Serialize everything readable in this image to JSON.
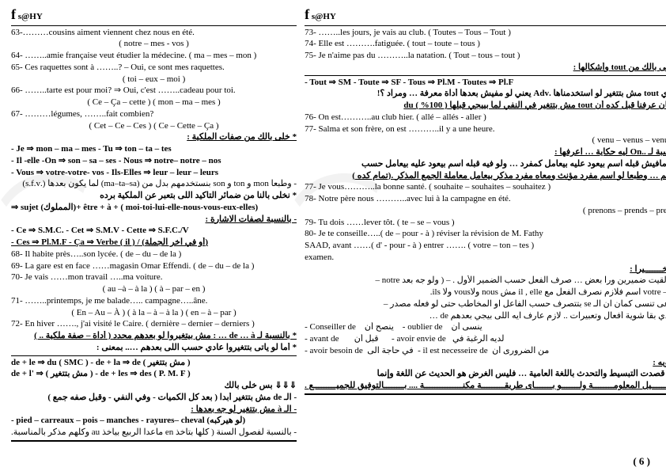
{
  "logo": {
    "fb": "f",
    "name": "s@HY"
  },
  "left": {
    "q63": "63-………cousins aiment viennent chez nous en été.",
    "q63o": "( notre – mes - vos )",
    "q64": "64- ……..amie française veut étudier la médecine. ( ma – mes – mon )",
    "q65": "65- Ces raquettes sont à ……..? – Oui, ce sont mes raquettes.",
    "q65o": "( toi – eux – moi )",
    "q66": "66- ……..tarte est pour moi? ⇒ Oui, c'est ……..cadeau pour toi.",
    "q66o": "( Ce – Ça – cette )            ( mon – ma – mes )",
    "q67": "67- ………légumes, ……..fait combien?",
    "q67o": "( Cet – Ce – Ces )             ( Ce – Cette – Ça )",
    "h1": "* خلى بالك من صفات الملكية :",
    "r1": "- Je          ⇒ mon – ma – mes - Tu       ⇒ ton – ta – tes",
    "r2": "- Il -elle -On ⇒ son – sa – ses   - Nous     ⇒ notre– notre – nos",
    "r3": "- Vous   ⇒ votre-votre- vos - Ils-Elles   ⇒ leur – leur – leurs",
    "r4": "- وطبعا mon و ton و son بنستخدمهم بدل من (ma–ta–sa) لما يكون بعدها (.s.f.v)",
    "r5": "* نخلى بالنا من ضمائر التأكيد اللى بتعبر عن الملكية برده",
    "r6": "⇒ sujet (المملوك)+ être + à + ( moi-toi-lui-elle-nous-vous-eux-elles)",
    "h2": "- بالنسبة لصفات الاشارة :",
    "r7": "- Ce    ⇒ S.M.C.   - Cet   ⇒ S.M.V     - Cette     ⇒ S.F.C./V",
    "r8": "- Ces  ⇒ Pl.M.F    - Ça   ⇒ Verbe ( il ) / (أو في آخر الجملة)",
    "q68": "68- Il habite près…..son lycée.                ( de – du – de la )",
    "q69": "69- La gare est en face ……magasin Omar Effendi.  ( de – du – de la )",
    "q70": "70- Je vais ……mon travail …..ma voiture.",
    "q70o": "( au –à – à la )                        ( à – par – en )",
    "q71": "71- ……..printemps, je me balade….. campagne…..âne.",
    "q71o": "( En – Au – À )               ( à la – à – à la )           ( en – à – par )",
    "q72": "72- En hiver ……., j'ai visité le Caire.  ( dernière – dernier – derniers )",
    "de1": "* بالنسبة لـ de … à … : مش بيتغيروا لو بعدهم محدد ( أداة – صفة ملكية .. ) ",
    "de2": "* أما لو ياتى بتتغيروا عادي حسب اللى بعدهم ….. بمعنى :",
    "tbl1": "de + le    ⇒ du ( SMC )        - de + la ⇒ de ( مش بتتغير )",
    "tbl2": "de + l'    ⇒ ( مش بتتغير )     - de + les ⇒ des  ( P. M. F )",
    "arrow": "⇓⇓⇓    بس خلى بالك",
    "de3": "- الـ de مش بتتغير أبدا  ( بعد كل الكميات - وفي النفي  - وقبل صفه جمع )",
    "de4": "- الـ à مش بتتغير لو جه بعدها :",
    "foot1": "- pied – carreaux – pois – manches - rayures– cheval (لو هيركبه)",
    "foot2": "- بالنسبة لفصول السنة ( كلها بتاخذ en  ماعدا الربيع بياخذ au  وكلهم مذكر بالمناسبة."
  },
  "right": {
    "q73": "73- ……..les jours, je vais au club.          ( Toutes – Tous – Tout )",
    "q74": "74- Elle est ……….fatiguée.                       ( tout – toute – tous )",
    "q75": "75- Je n'aime pas du ………..la natation.   ( Tout – tous – tout )",
    "th": "* خلى بالك من tout وأشكالها :",
    "t1": "- Tout  ⇒ SM  - Toute ⇒ SF   - Tous ⇒ Pl.M   - Toutes ⇒ Pl.F",
    "t2": "- ودي tout مش بتتغير لو استخدمناها .Adv يعني لو مفيش بعدها أداة معرفة … ومراد ؟!",
    "t3": "وكمان عرفنا قبل كده أن tout مش بتتغير في النفي لما بييجي قبلها du  ( %100 )",
    "q76": "76- On est………..au club hier.                    ( allé – allés - aller )",
    "q77": "77- Salma et son frère, on est ………..il y a  une heure.",
    "q77o": "( venu – venus – venues )",
    "oh": "بالنسبة لـ ..On ليه حكاية … اعرفها :",
    "o1": "- لو مافيش قبله اسم بيعود عليه بيعامل كمفرد … ولو فيه قبله اسم بيعود عليه بيعامل حسب",
    "o2": "الاسم … وطبعا لو اسم مفرد مؤنث ومعاه مفرد مذكر بيعامل معاملة الجمع المذكر .(تمام كده )",
    "q78": "77- Je vous………..la bonne santé.   ( souhaite – souhaites – souhaitez )",
    "q79": "78- Notre père nous ………..avec lui à la campagne en été.",
    "q79o": "( prenons – prends – prend )",
    "q80": "79- Tu dois ……lever tôt.                                 ( te – se – vous )",
    "q81": "80- Je te conseille…..( de – pour - à  ) réviser la révision de M. Fathy",
    "q82": "SAAD, avant ……( d' - pour - à  )  entrer …….  ( votre – ton – tes )",
    "q82b": "examen.",
    "fh": "* وأخـــــــيرا :",
    "f1": "- لو لقيت ضميرين ورا بعض … صرف الفعل حسب الضمير الأول . – ( ولو جه بعد notre –",
    "f2": "votre –leur اسم فلازم نصرف الفعل مع il , elle مش nous ولاvous ولا ils.",
    "f3": "- أوعى تنسى كمان ان الـ se بتتصرف حسب الفاعل او المخاطب حتى لو فعله مصدر –",
    "f4": "وهتدي بقا شوية أفعال وتعبيرات .. لازم عارف ايه اللى بيجي بعدهم de …",
    "row1a": "- Conseiller de",
    "row1b": "ينصح أن",
    "row1c": "- oublier de",
    "row1d": "ينسى أن",
    "row2a": "- avant de",
    "row2b": "قبل أن",
    "row2c": "- avoir envie de",
    "row2d": "لديه الرغبة في",
    "row3a": "- avoir besoin de",
    "row3b": "في حاجة الى",
    "row3c": "- il est necesseire de",
    "row3d": "من الضرورى أن",
    "nh": "* تنويه :",
    "n1": "* أنا قصدت التبسيط والتحدث باللغة العامية … فليس الغرض هو الحديث عن اللغة وإنما",
    "n2": "توصــــــيل المعلومــــــــة ولـــــــو بـــــــأى طريقـــــــــة مكنـــــــــــــــة .... بــــــــالتوفيق للجميـــــــــع ."
  },
  "page": "( 6 )"
}
